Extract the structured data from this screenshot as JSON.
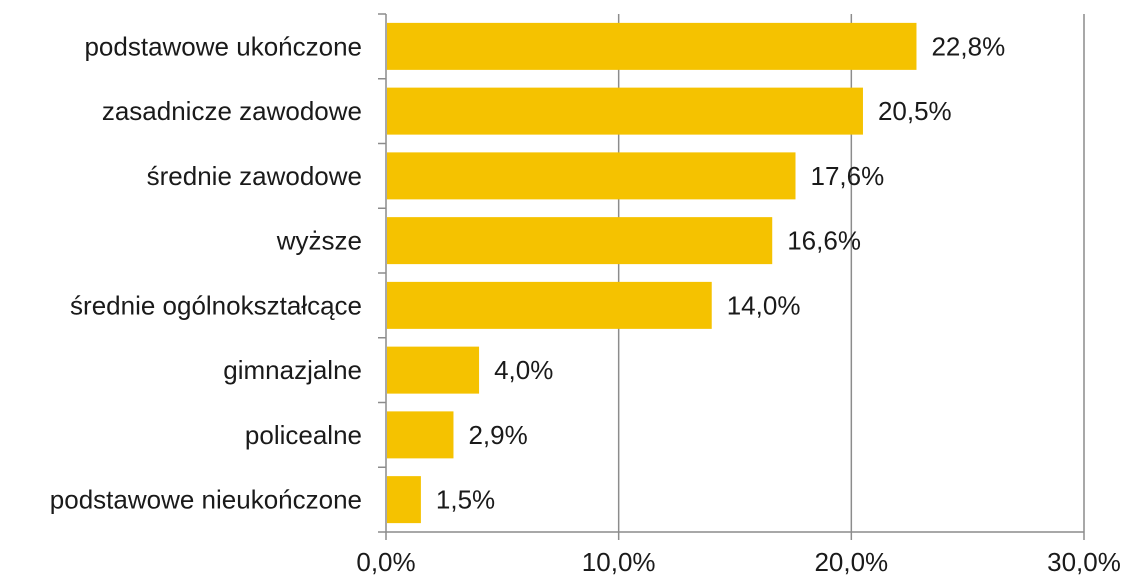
{
  "chart_data": {
    "type": "bar",
    "orientation": "horizontal",
    "title": "",
    "xlabel": "",
    "ylabel": "",
    "categories": [
      "podstawowe ukończone",
      "zasadnicze zawodowe",
      "średnie zawodowe",
      "wyższe",
      "średnie ogólnokształcące",
      "gimnazjalne",
      "policealne",
      "podstawowe nieukończone"
    ],
    "values": [
      22.8,
      20.5,
      17.6,
      16.6,
      14.0,
      4.0,
      2.9,
      1.5
    ],
    "value_labels": [
      "22,8%",
      "20,5%",
      "17,6%",
      "16,6%",
      "14,0%",
      "4,0%",
      "2,9%",
      "1,5%"
    ],
    "xlim": [
      0,
      30
    ],
    "x_ticks": [
      0,
      10,
      20,
      30
    ],
    "x_tick_labels": [
      "0,0%",
      "10,0%",
      "20,0%",
      "30,0%"
    ],
    "grid": "vertical-major",
    "legend": "none",
    "colors": {
      "bar": "#F5C200",
      "grid": "#8c8c8c",
      "axis": "#8c8c8c",
      "text": "#1a1a1a"
    }
  }
}
